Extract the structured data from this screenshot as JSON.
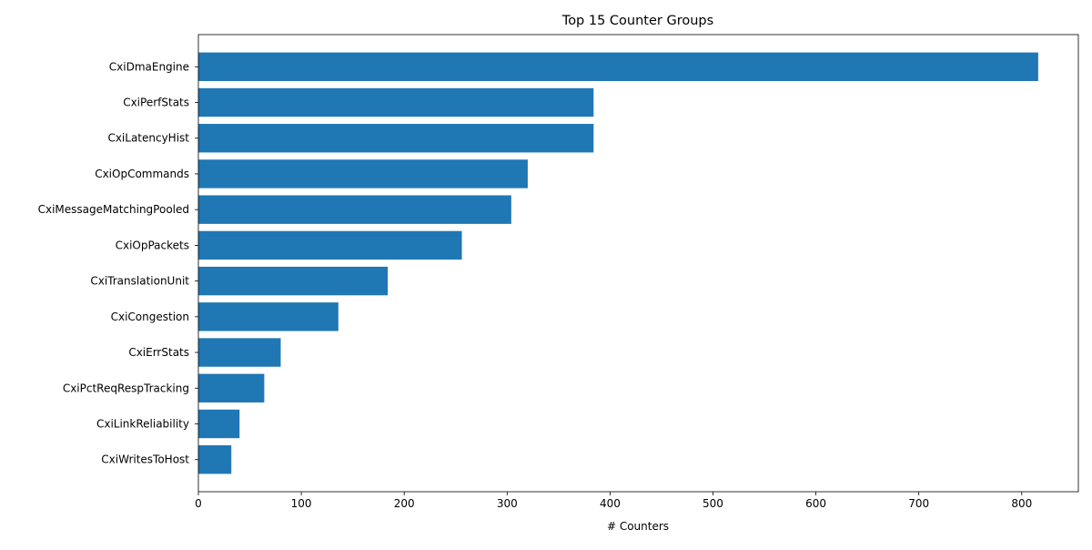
{
  "chart_data": {
    "type": "bar",
    "orientation": "horizontal",
    "title": "Top 15 Counter Groups",
    "xlabel": "# Counters",
    "ylabel": "",
    "xlim": [
      0,
      855
    ],
    "xticks": [
      0,
      100,
      200,
      300,
      400,
      500,
      600,
      700,
      800
    ],
    "grid": false,
    "legend": "none",
    "bar_color": "#1f77b4",
    "categories": [
      "CxiDmaEngine",
      "CxiPerfStats",
      "CxiLatencyHist",
      "CxiOpCommands",
      "CxiMessageMatchingPooled",
      "CxiOpPackets",
      "CxiTranslationUnit",
      "CxiCongestion",
      "CxiErrStats",
      "CxiPctReqRespTracking",
      "CxiLinkReliability",
      "CxiWritesToHost"
    ],
    "values": [
      816,
      384,
      384,
      320,
      304,
      256,
      184,
      136,
      80,
      64,
      40,
      32
    ]
  }
}
